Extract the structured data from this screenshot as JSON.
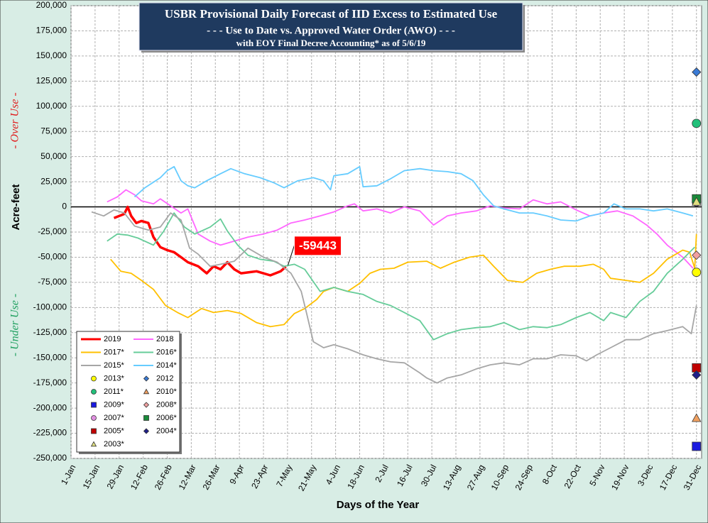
{
  "chart_data": {
    "type": "line",
    "title": "USBR Provisional Daily Forecast of IID Excess to Estimated Use",
    "subtitle": "- - - Use to Date vs. Approved Water Order (AWO) - - -",
    "subtitle2": "with EOY Final Decree Accounting* as of  5/6/19",
    "x_label": "Days of the Year",
    "y_label": "Acre-feet",
    "over_label": "- Over Use -",
    "under_label": "- Under Use -",
    "annotation": "-59443",
    "legend": "lower left",
    "grid": true,
    "xlim": [
      0,
      367
    ],
    "ylim": [
      -250000,
      200000
    ],
    "xticks": [
      {
        "value": 0,
        "label": "1-Jan"
      },
      {
        "value": 14,
        "label": "15-Jan"
      },
      {
        "value": 28,
        "label": "29-Jan"
      },
      {
        "value": 42,
        "label": "12-Feb"
      },
      {
        "value": 56,
        "label": "26-Feb"
      },
      {
        "value": 70,
        "label": "12-Mar"
      },
      {
        "value": 84,
        "label": "26-Mar"
      },
      {
        "value": 98,
        "label": "9-Apr"
      },
      {
        "value": 112,
        "label": "23-Apr"
      },
      {
        "value": 126,
        "label": "7-May"
      },
      {
        "value": 140,
        "label": "21-May"
      },
      {
        "value": 154,
        "label": "4-Jun"
      },
      {
        "value": 168,
        "label": "18-Jun"
      },
      {
        "value": 182,
        "label": "2-Jul"
      },
      {
        "value": 196,
        "label": "16-Jul"
      },
      {
        "value": 210,
        "label": "30-Jul"
      },
      {
        "value": 224,
        "label": "13-Aug"
      },
      {
        "value": 238,
        "label": "27-Aug"
      },
      {
        "value": 252,
        "label": "10-Sep"
      },
      {
        "value": 266,
        "label": "24-Sep"
      },
      {
        "value": 280,
        "label": "8-Oct"
      },
      {
        "value": 294,
        "label": "22-Oct"
      },
      {
        "value": 308,
        "label": "5-Nov"
      },
      {
        "value": 322,
        "label": "19-Nov"
      },
      {
        "value": 336,
        "label": "3-Dec"
      },
      {
        "value": 350,
        "label": "17-Dec"
      },
      {
        "value": 364,
        "label": "31-Dec"
      }
    ],
    "yticks": [
      {
        "value": 200000,
        "label": "200,000"
      },
      {
        "value": 175000,
        "label": "175,000"
      },
      {
        "value": 150000,
        "label": "150,000"
      },
      {
        "value": 125000,
        "label": "125,000"
      },
      {
        "value": 100000,
        "label": "100,000"
      },
      {
        "value": 75000,
        "label": "75,000"
      },
      {
        "value": 50000,
        "label": "50,000"
      },
      {
        "value": 25000,
        "label": "25,000"
      },
      0,
      {
        "value": -25000,
        "label": "-25,000"
      },
      {
        "value": -50000,
        "label": "-50,000"
      },
      {
        "value": -75000,
        "label": "-75,000"
      },
      {
        "value": -100000,
        "label": "-100,000"
      },
      {
        "value": -125000,
        "label": "-125,000"
      },
      {
        "value": -150000,
        "label": "-150,000"
      },
      {
        "value": -175000,
        "label": "-175,000"
      },
      {
        "value": -200000,
        "label": "-200,000"
      },
      {
        "value": -225000,
        "label": "-225,000"
      },
      {
        "value": -250000,
        "label": "-250,000"
      }
    ],
    "series": [
      {
        "name": "2019",
        "color": "#ff0000",
        "x": [
          25,
          31,
          33,
          35,
          38,
          41,
          45,
          48,
          52,
          56,
          60,
          64,
          68,
          74,
          79,
          83,
          87,
          91,
          95,
          99,
          108,
          116,
          122,
          125
        ],
        "values": [
          -11000,
          -7000,
          0,
          -9000,
          -16000,
          -14000,
          -16000,
          -30000,
          -40000,
          -43000,
          -45000,
          -50000,
          -55000,
          -59000,
          -66000,
          -59000,
          -62000,
          -55000,
          -62000,
          -66000,
          -64000,
          -68000,
          -64000,
          -59443
        ]
      },
      {
        "name": "2018",
        "color": "#ff66ff",
        "x": [
          21,
          27,
          32,
          37,
          41,
          48,
          52,
          58,
          64,
          68,
          74,
          81,
          87,
          95,
          103,
          112,
          120,
          128,
          136,
          145,
          153,
          161,
          165,
          170,
          178,
          186,
          194,
          203,
          211,
          219,
          227,
          236,
          244,
          252,
          261,
          269,
          277,
          285,
          294,
          302,
          310,
          318,
          327,
          335,
          341,
          347,
          356,
          362
        ],
        "values": [
          5000,
          10000,
          17000,
          12000,
          6000,
          3000,
          8000,
          1000,
          -6000,
          -2000,
          -27000,
          -34000,
          -38000,
          -34000,
          -30000,
          -27000,
          -23000,
          -16000,
          -13000,
          -9000,
          -5000,
          1000,
          3000,
          -4000,
          -2000,
          -6000,
          0,
          -4000,
          -18000,
          -9000,
          -6000,
          -4000,
          1000,
          -1000,
          -2000,
          7000,
          3000,
          5000,
          -3000,
          -9000,
          -6000,
          -4000,
          -9000,
          -18000,
          -27000,
          -38000,
          -50000,
          -61000
        ]
      },
      {
        "name": "2017*",
        "color": "#ffc000",
        "x": [
          23,
          29,
          35,
          41,
          48,
          55,
          62,
          68,
          76,
          83,
          91,
          99,
          108,
          116,
          124,
          130,
          136,
          143,
          147,
          153,
          161,
          168,
          174,
          180,
          188,
          196,
          207,
          215,
          223,
          232,
          240,
          246,
          254,
          263,
          271,
          279,
          287,
          296,
          304,
          310,
          314,
          323,
          331,
          339,
          347,
          356,
          360,
          363,
          364
        ],
        "values": [
          -52000,
          -64000,
          -66000,
          -73000,
          -82000,
          -98000,
          -105000,
          -110000,
          -101000,
          -105000,
          -103000,
          -106000,
          -115000,
          -119000,
          -117000,
          -106000,
          -101000,
          -92000,
          -84000,
          -80000,
          -84000,
          -76000,
          -66000,
          -62000,
          -61000,
          -55000,
          -54000,
          -61000,
          -55000,
          -50000,
          -48000,
          -59000,
          -73000,
          -75000,
          -66000,
          -62000,
          -59000,
          -59000,
          -57000,
          -62000,
          -71000,
          -73000,
          -75000,
          -66000,
          -52000,
          -43000,
          -45000,
          -61000,
          -27000
        ]
      },
      {
        "name": "2016*",
        "color": "#66cc99",
        "x": [
          21,
          27,
          33,
          39,
          48,
          54,
          60,
          66,
          72,
          81,
          87,
          91,
          97,
          103,
          110,
          118,
          124,
          130,
          136,
          145,
          153,
          161,
          170,
          178,
          186,
          194,
          203,
          211,
          219,
          227,
          236,
          244,
          252,
          261,
          269,
          277,
          285,
          294,
          302,
          310,
          314,
          323,
          331,
          339,
          347,
          356,
          363
        ],
        "values": [
          -34000,
          -27000,
          -28000,
          -31000,
          -38000,
          -24000,
          -6000,
          -20000,
          -27000,
          -20000,
          -12000,
          -24000,
          -38000,
          -48000,
          -52000,
          -54000,
          -59000,
          -57000,
          -62000,
          -84000,
          -80000,
          -84000,
          -87000,
          -94000,
          -98000,
          -105000,
          -113000,
          -132000,
          -126000,
          -122000,
          -120000,
          -119000,
          -115000,
          -122000,
          -119000,
          -120000,
          -117000,
          -110000,
          -105000,
          -113000,
          -105000,
          -110000,
          -94000,
          -84000,
          -66000,
          -52000,
          -40000
        ]
      },
      {
        "name": "2015*",
        "color": "#a6a6a6",
        "x": [
          12,
          19,
          25,
          31,
          37,
          45,
          52,
          58,
          64,
          69,
          74,
          81,
          87,
          95,
          103,
          112,
          120,
          128,
          134,
          137,
          141,
          147,
          153,
          161,
          170,
          178,
          186,
          194,
          203,
          207,
          213,
          219,
          227,
          236,
          244,
          252,
          261,
          269,
          277,
          285,
          294,
          300,
          306,
          314,
          323,
          331,
          339,
          347,
          356,
          361,
          364
        ],
        "values": [
          -5000,
          -9000,
          -3000,
          -6000,
          -19000,
          -23000,
          -20000,
          -6000,
          -13000,
          -41000,
          -47000,
          -59000,
          -57000,
          -54000,
          -41000,
          -50000,
          -55000,
          -66000,
          -84000,
          -105000,
          -134000,
          -140000,
          -137000,
          -141000,
          -147000,
          -151000,
          -154000,
          -155000,
          -165000,
          -170000,
          -175000,
          -170000,
          -167000,
          -161000,
          -157000,
          -155000,
          -157000,
          -151000,
          -151000,
          -147000,
          -148000,
          -153000,
          -147000,
          -140000,
          -132000,
          -132000,
          -126000,
          -123000,
          -119000,
          -126000,
          -98000
        ]
      },
      {
        "name": "2014*",
        "color": "#66ccff",
        "x": [
          37,
          43,
          52,
          56,
          60,
          64,
          68,
          72,
          79,
          87,
          93,
          101,
          110,
          118,
          124,
          132,
          141,
          147,
          151,
          153,
          161,
          168,
          170,
          178,
          186,
          194,
          203,
          211,
          219,
          227,
          234,
          240,
          246,
          252,
          261,
          269,
          277,
          285,
          294,
          302,
          310,
          316,
          323,
          331,
          339,
          347,
          356,
          362
        ],
        "values": [
          10000,
          19000,
          29000,
          36000,
          40000,
          26000,
          21000,
          19000,
          26000,
          33000,
          38000,
          33000,
          29000,
          24000,
          19000,
          26000,
          29000,
          26000,
          17000,
          31000,
          33000,
          40000,
          20000,
          21000,
          28000,
          36000,
          38000,
          36000,
          35000,
          33000,
          26000,
          12000,
          1000,
          -2000,
          -6000,
          -6000,
          -9000,
          -13000,
          -14000,
          -9000,
          -6000,
          3000,
          -2000,
          -2000,
          -4000,
          -2000,
          -6000,
          -9000
        ]
      }
    ],
    "markers": [
      {
        "name": "2013*",
        "color": "#ffff00",
        "shape": "circle",
        "x": 364,
        "value": -65000
      },
      {
        "name": "2012",
        "color": "#3a7bd5",
        "shape": "diamond",
        "x": 364,
        "value": 134000
      },
      {
        "name": "2011*",
        "color": "#22c07a",
        "shape": "circle",
        "x": 364,
        "value": 83000
      },
      {
        "name": "2010*",
        "color": "#f0a060",
        "shape": "triangle",
        "x": 364,
        "value": -210000
      },
      {
        "name": "2009*",
        "color": "#1a1ae0",
        "shape": "square",
        "x": 364,
        "value": -238000
      },
      {
        "name": "2008*",
        "color": "#f0a0a0",
        "shape": "diamond",
        "x": 364,
        "value": -48000
      },
      {
        "name": "2007*",
        "color": "#e090e0",
        "shape": "circle",
        "x": 364,
        "value": 5000
      },
      {
        "name": "2006*",
        "color": "#1a8a3a",
        "shape": "square",
        "x": 364,
        "value": 8000
      },
      {
        "name": "2005*",
        "color": "#c00000",
        "shape": "square",
        "x": 364,
        "value": -160000
      },
      {
        "name": "2004*",
        "color": "#20208a",
        "shape": "diamond",
        "x": 364,
        "value": -167000
      },
      {
        "name": "2003*",
        "color": "#e0e080",
        "shape": "triangle",
        "x": 364,
        "value": 5000
      }
    ]
  }
}
